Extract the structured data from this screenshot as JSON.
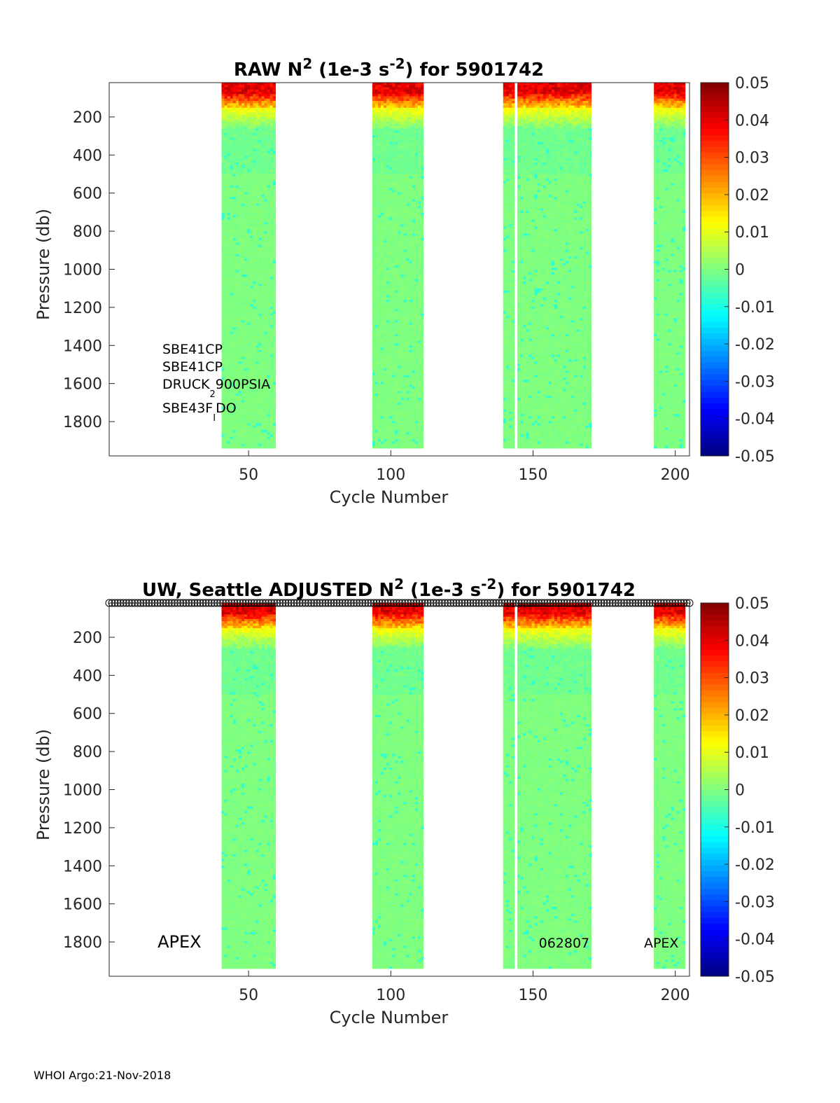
{
  "footer": "WHOI Argo:21-Nov-2018",
  "chart_data": [
    {
      "type": "heatmap",
      "title": {
        "prefix": "RAW N",
        "sup": "2",
        "mid": " (1e-3 s",
        "sup2": "-2",
        "suffix": ") for 5901742"
      },
      "xlabel": "Cycle Number",
      "ylabel": "Pressure (db)",
      "xlim": [
        1,
        205
      ],
      "ylim": [
        1980,
        20
      ],
      "y_reversed": true,
      "xticks": [
        50,
        100,
        150,
        200
      ],
      "yticks": [
        200,
        400,
        600,
        800,
        1000,
        1200,
        1400,
        1600,
        1800
      ],
      "colorbar": {
        "min": -0.05,
        "max": 0.05,
        "ticks": [
          "0.05",
          "0.04",
          "0.03",
          "0.02",
          "0.01",
          "0",
          "-0.01",
          "-0.02",
          "-0.03",
          "-0.04",
          "-0.05"
        ],
        "colormap": "jet"
      },
      "data_blocks": [
        {
          "cycles": [
            41,
            59
          ]
        },
        {
          "cycles": [
            94,
            111
          ]
        },
        {
          "cycles": [
            140,
            143
          ]
        },
        {
          "cycles": [
            145,
            170
          ]
        },
        {
          "cycles": [
            193,
            203
          ]
        }
      ],
      "annotations": [
        {
          "text": "SBE41CP"
        },
        {
          "text": "SBE41CP"
        },
        {
          "text": "DRUCK",
          "sub": "2",
          "after": "900PSIA"
        },
        {
          "text": "SBE43F",
          "sub": "I",
          "after": "DO"
        }
      ],
      "surface_markers": false
    },
    {
      "type": "heatmap",
      "title": {
        "prefix": "UW, Seattle  ADJUSTED N",
        "sup": "2",
        "mid": " (1e-3 s",
        "sup2": "-2",
        "suffix": ") for 5901742"
      },
      "xlabel": "Cycle Number",
      "ylabel": "Pressure (db)",
      "xlim": [
        1,
        205
      ],
      "ylim": [
        1980,
        20
      ],
      "y_reversed": true,
      "xticks": [
        50,
        100,
        150,
        200
      ],
      "yticks": [
        200,
        400,
        600,
        800,
        1000,
        1200,
        1400,
        1600,
        1800
      ],
      "colorbar": {
        "min": -0.05,
        "max": 0.05,
        "ticks": [
          "0.05",
          "0.04",
          "0.03",
          "0.02",
          "0.01",
          "0",
          "-0.01",
          "-0.02",
          "-0.03",
          "-0.04",
          "-0.05"
        ],
        "colormap": "jet"
      },
      "data_blocks": [
        {
          "cycles": [
            41,
            59
          ]
        },
        {
          "cycles": [
            94,
            111
          ]
        },
        {
          "cycles": [
            140,
            143
          ]
        },
        {
          "cycles": [
            145,
            170
          ]
        },
        {
          "cycles": [
            193,
            203
          ]
        }
      ],
      "annotations": [
        {
          "text": "APEX",
          "x": 18,
          "y": 1800
        },
        {
          "text": "062807",
          "x": 152,
          "y": 1800
        },
        {
          "text": "APEX",
          "x": 189,
          "y": 1800
        }
      ],
      "surface_markers": true
    }
  ]
}
